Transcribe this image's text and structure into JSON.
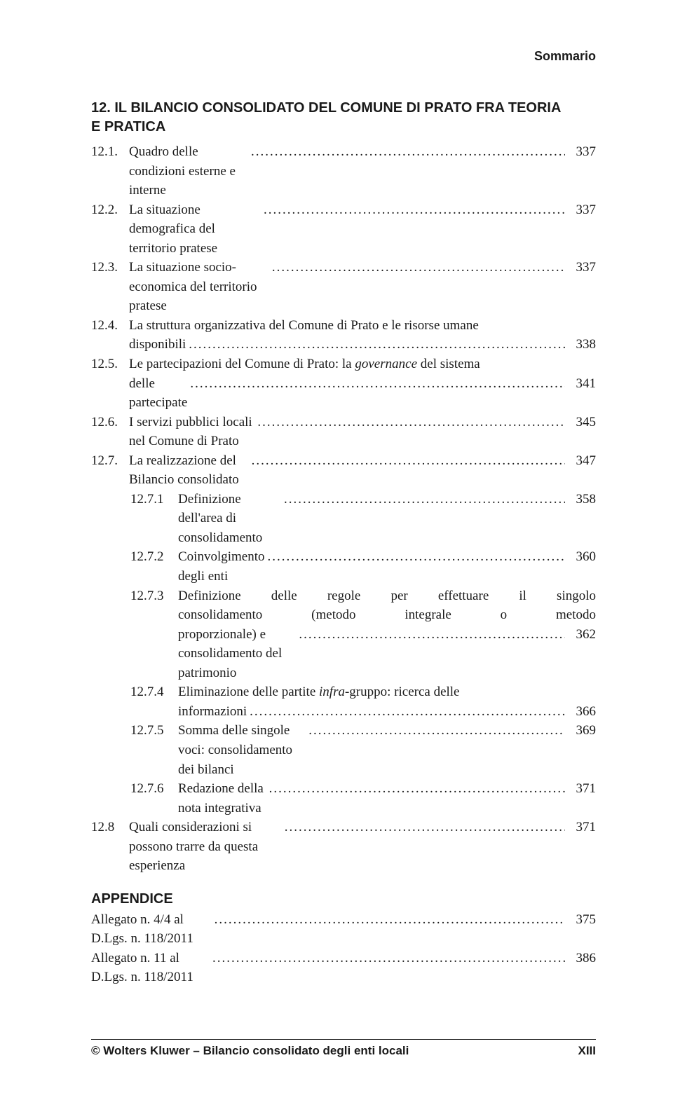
{
  "running_header": "Sommario",
  "chapter": {
    "heading_line1": "12. IL BILANCIO CONSOLIDATO DEL COMUNE DI PRATO FRA TEORIA",
    "heading_line2": "E PRATICA"
  },
  "entries": [
    {
      "num": "12.1.",
      "label": "Quadro delle condizioni esterne e interne",
      "page": "337",
      "indent": 1
    },
    {
      "num": "12.2.",
      "label": "La situazione demografica del territorio pratese",
      "page": "337",
      "indent": 1
    },
    {
      "num": "12.3.",
      "label": "La situazione socio-economica del territorio pratese",
      "page": "337",
      "indent": 1
    },
    {
      "num": "12.4.",
      "label_lines": [
        "La struttura organizzativa del Comune di Prato e le risorse umane",
        "disponibili"
      ],
      "page": "338",
      "indent": 1
    },
    {
      "num": "12.5.",
      "label_lines_html": [
        "Le partecipazioni del Comune di Prato: la <span class='italic'>governance</span> del sistema",
        "delle partecipate"
      ],
      "page": "341",
      "indent": 1
    },
    {
      "num": "12.6.",
      "label": "I servizi pubblici locali nel Comune di Prato",
      "page": "345",
      "indent": 1
    },
    {
      "num": "12.7.",
      "label": "La realizzazione del Bilancio consolidato",
      "page": "347",
      "indent": 1
    },
    {
      "num": "12.7.1",
      "label": "Definizione dell'area di consolidamento",
      "page": "358",
      "indent": 2
    },
    {
      "num": "12.7.2",
      "label": "Coinvolgimento degli enti",
      "page": "360",
      "indent": 2
    },
    {
      "num": "12.7.3",
      "label_lines": [
        "Definizione delle regole per effettuare il singolo",
        "consolidamento (metodo integrale o metodo",
        "proporzionale) e consolidamento del patrimonio"
      ],
      "page": "362",
      "indent": 2,
      "justify": true
    },
    {
      "num": "12.7.4",
      "label_lines_html": [
        "Eliminazione delle partite <span class='italic'>infra</span>-gruppo: ricerca delle",
        "informazioni"
      ],
      "page": "366",
      "indent": 2
    },
    {
      "num": "12.7.5",
      "label": "Somma delle singole voci: consolidamento dei bilanci",
      "page": "369",
      "indent": 2
    },
    {
      "num": "12.7.6",
      "label": "Redazione della nota integrativa",
      "page": "371",
      "indent": 2
    },
    {
      "num": "12.8",
      "label": "Quali considerazioni si possono trarre da questa esperienza",
      "page": "371",
      "indent": 1
    }
  ],
  "appendix": {
    "title": "APPENDICE",
    "items": [
      {
        "label": "Allegato n. 4/4 al D.Lgs. n. 118/2011",
        "page": "375"
      },
      {
        "label": "Allegato n. 11 al D.Lgs. n. 118/2011",
        "page": "386"
      }
    ]
  },
  "footer": {
    "left": "© Wolters Kluwer – Bilancio consolidato degli enti locali",
    "right": "XIII"
  },
  "dots": "........................................................................................................................."
}
